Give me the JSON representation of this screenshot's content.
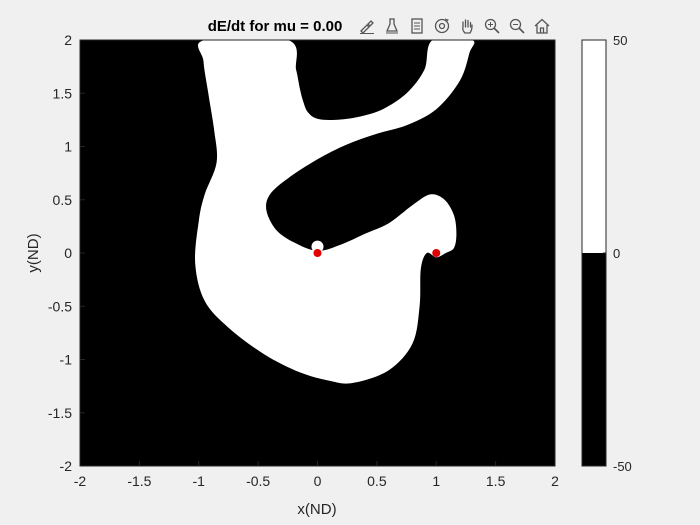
{
  "toolbar": {
    "items": [
      {
        "name": "brush-icon",
        "label": "Brush"
      },
      {
        "name": "data-cursor-icon",
        "label": "Data Tips"
      },
      {
        "name": "export-icon",
        "label": "Export"
      },
      {
        "name": "rotate-3d-icon",
        "label": "Rotate 3D"
      },
      {
        "name": "pan-icon",
        "label": "Pan"
      },
      {
        "name": "zoom-in-icon",
        "label": "Zoom In"
      },
      {
        "name": "zoom-out-icon",
        "label": "Zoom Out"
      },
      {
        "name": "home-icon",
        "label": "Restore View"
      }
    ]
  },
  "chart_data": {
    "type": "heatmap",
    "title": "dE/dt for mu = 0.00",
    "xlabel": "x(ND)",
    "ylabel": "y(ND)",
    "xlim": [
      -2,
      2
    ],
    "ylim": [
      -2,
      2
    ],
    "xticks": [
      "-2",
      "-1.5",
      "-1",
      "-0.5",
      "0",
      "0.5",
      "1",
      "1.5",
      "2"
    ],
    "yticks": [
      "2",
      "1.5",
      "1",
      "0.5",
      "0",
      "-0.5",
      "-1",
      "-1.5",
      "-2"
    ],
    "colormap": {
      "below_zero": "#000000",
      "above_zero": "#ffffff"
    },
    "colorbar": {
      "ticks": [
        "50",
        "0",
        "-50"
      ],
      "range": [
        -50,
        50
      ]
    },
    "region_above_zero_boundary": [
      [
        -0.95,
        2.0
      ],
      [
        -0.25,
        2.0
      ],
      [
        -0.18,
        1.72
      ],
      [
        -0.15,
        1.55
      ],
      [
        -0.12,
        1.42
      ],
      [
        -0.08,
        1.32
      ],
      [
        0.0,
        1.26
      ],
      [
        0.15,
        1.25
      ],
      [
        0.35,
        1.28
      ],
      [
        0.55,
        1.35
      ],
      [
        0.75,
        1.5
      ],
      [
        0.9,
        1.72
      ],
      [
        0.97,
        2.0
      ],
      [
        1.3,
        2.0
      ],
      [
        1.28,
        1.88
      ],
      [
        1.2,
        1.62
      ],
      [
        1.0,
        1.35
      ],
      [
        0.75,
        1.2
      ],
      [
        0.5,
        1.12
      ],
      [
        0.25,
        1.02
      ],
      [
        0.0,
        0.88
      ],
      [
        -0.25,
        0.7
      ],
      [
        -0.4,
        0.55
      ],
      [
        -0.43,
        0.4
      ],
      [
        -0.35,
        0.22
      ],
      [
        -0.2,
        0.1
      ],
      [
        0.0,
        0.02
      ],
      [
        0.2,
        0.08
      ],
      [
        0.4,
        0.18
      ],
      [
        0.6,
        0.28
      ],
      [
        0.8,
        0.45
      ],
      [
        0.95,
        0.55
      ],
      [
        1.07,
        0.5
      ],
      [
        1.15,
        0.35
      ],
      [
        1.17,
        0.18
      ],
      [
        1.15,
        0.05
      ],
      [
        1.08,
        0.0
      ],
      [
        1.0,
        -0.04
      ],
      [
        0.92,
        0.0
      ],
      [
        0.87,
        -0.15
      ],
      [
        0.86,
        -0.5
      ],
      [
        0.8,
        -0.85
      ],
      [
        0.6,
        -1.1
      ],
      [
        0.3,
        -1.22
      ],
      [
        0.1,
        -1.2
      ],
      [
        -0.15,
        -1.12
      ],
      [
        -0.45,
        -0.95
      ],
      [
        -0.75,
        -0.7
      ],
      [
        -0.95,
        -0.45
      ],
      [
        -1.03,
        -0.1
      ],
      [
        -1.0,
        0.3
      ],
      [
        -0.95,
        0.55
      ],
      [
        -0.85,
        0.85
      ],
      [
        -0.87,
        1.15
      ],
      [
        -0.92,
        1.5
      ],
      [
        -0.96,
        1.8
      ]
    ],
    "points": [
      {
        "x": 0.0,
        "y": 0.0,
        "color": "#e00000"
      },
      {
        "x": 1.0,
        "y": 0.0,
        "color": "#e00000"
      }
    ],
    "grid": false
  }
}
